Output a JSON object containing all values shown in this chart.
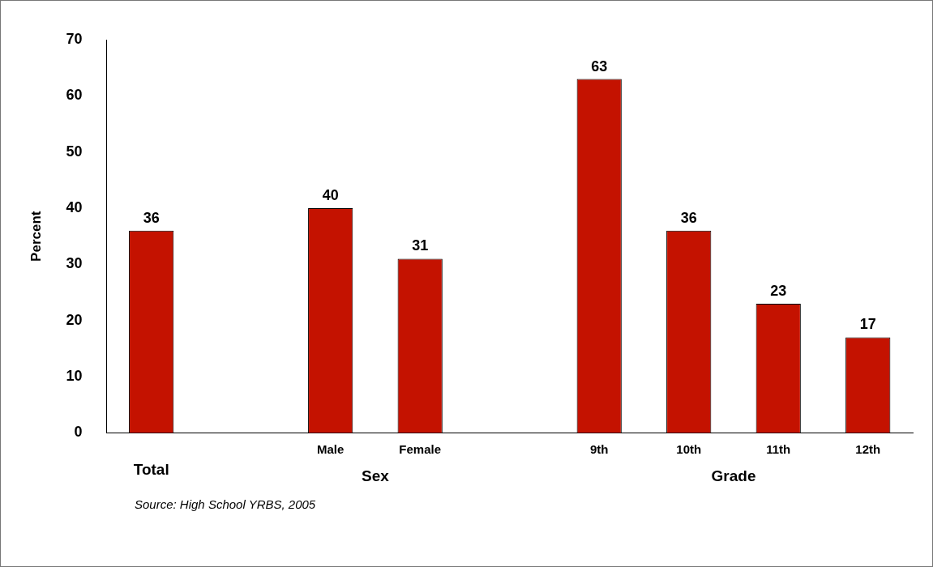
{
  "chart_data": {
    "type": "bar",
    "categories": [
      "Total",
      null,
      "Male",
      "Female",
      null,
      "9th",
      "10th",
      "11th",
      "12th"
    ],
    "values": [
      36,
      null,
      40,
      31,
      null,
      63,
      36,
      23,
      17
    ],
    "color": "#c41200",
    "ylabel": "Percent",
    "ylim": [
      0,
      70
    ],
    "yticks": [
      0,
      10,
      20,
      30,
      40,
      50,
      60,
      70
    ],
    "grid": false,
    "legend": false,
    "data_labels": true,
    "annotations": [
      "Sex",
      "Grade",
      "Source: High School YRBS, 2005"
    ]
  }
}
